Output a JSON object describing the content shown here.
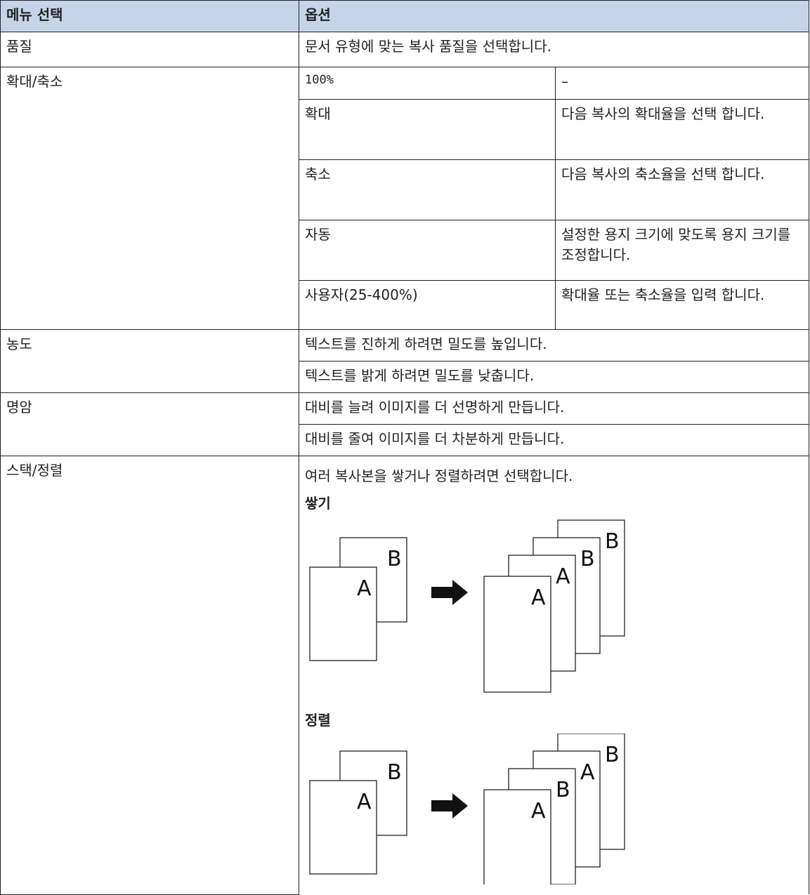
{
  "header": [
    "메뉴 선택",
    "옵션"
  ],
  "rows": [
    {
      "menu": "품질",
      "option": "문서 유형에 맞는 복사 품질을 선택합니다."
    },
    {
      "menu": "확대/축소",
      "options": [
        {
          "name": "100%",
          "desc": "–"
        },
        {
          "name": "확대",
          "desc": "다음 복사의 확대율을 선택 합니다."
        },
        {
          "name": "축소",
          "desc": "다음 복사의 축소율을 선택 합니다."
        },
        {
          "name": "자동",
          "desc": "설정한 용지 크기에 맞도록 용지 크기를 조정합니다."
        },
        {
          "name": "사용자(25-400%)",
          "desc": "확대율 또는 축소율을 입력 합니다."
        }
      ]
    },
    {
      "menu": "농도",
      "lines": [
        "텍스트를 진하게 하려면 밀도를 높입니다.",
        "텍스트를 밝게 하려면 밀도를 낮춥니다."
      ]
    },
    {
      "menu": "명암",
      "lines": [
        "대비를 늘려 이미지를 더 선명하게 만듭니다.",
        "대비를 줄여 이미지를 더 차분하게 만듭니다."
      ]
    },
    {
      "menu": "스택/정렬",
      "lines": [
        "여러 복사본을 쌓거나 정렬하려면 선택합니다."
      ],
      "diagrams": [
        {
          "title": "쌓기",
          "left": [
            "B",
            "A"
          ],
          "right": [
            "B",
            "B",
            "A",
            "A"
          ]
        },
        {
          "title": "정렬",
          "left": [
            "B",
            "A"
          ],
          "right": [
            "B",
            "A",
            "B",
            "A"
          ]
        }
      ]
    }
  ]
}
